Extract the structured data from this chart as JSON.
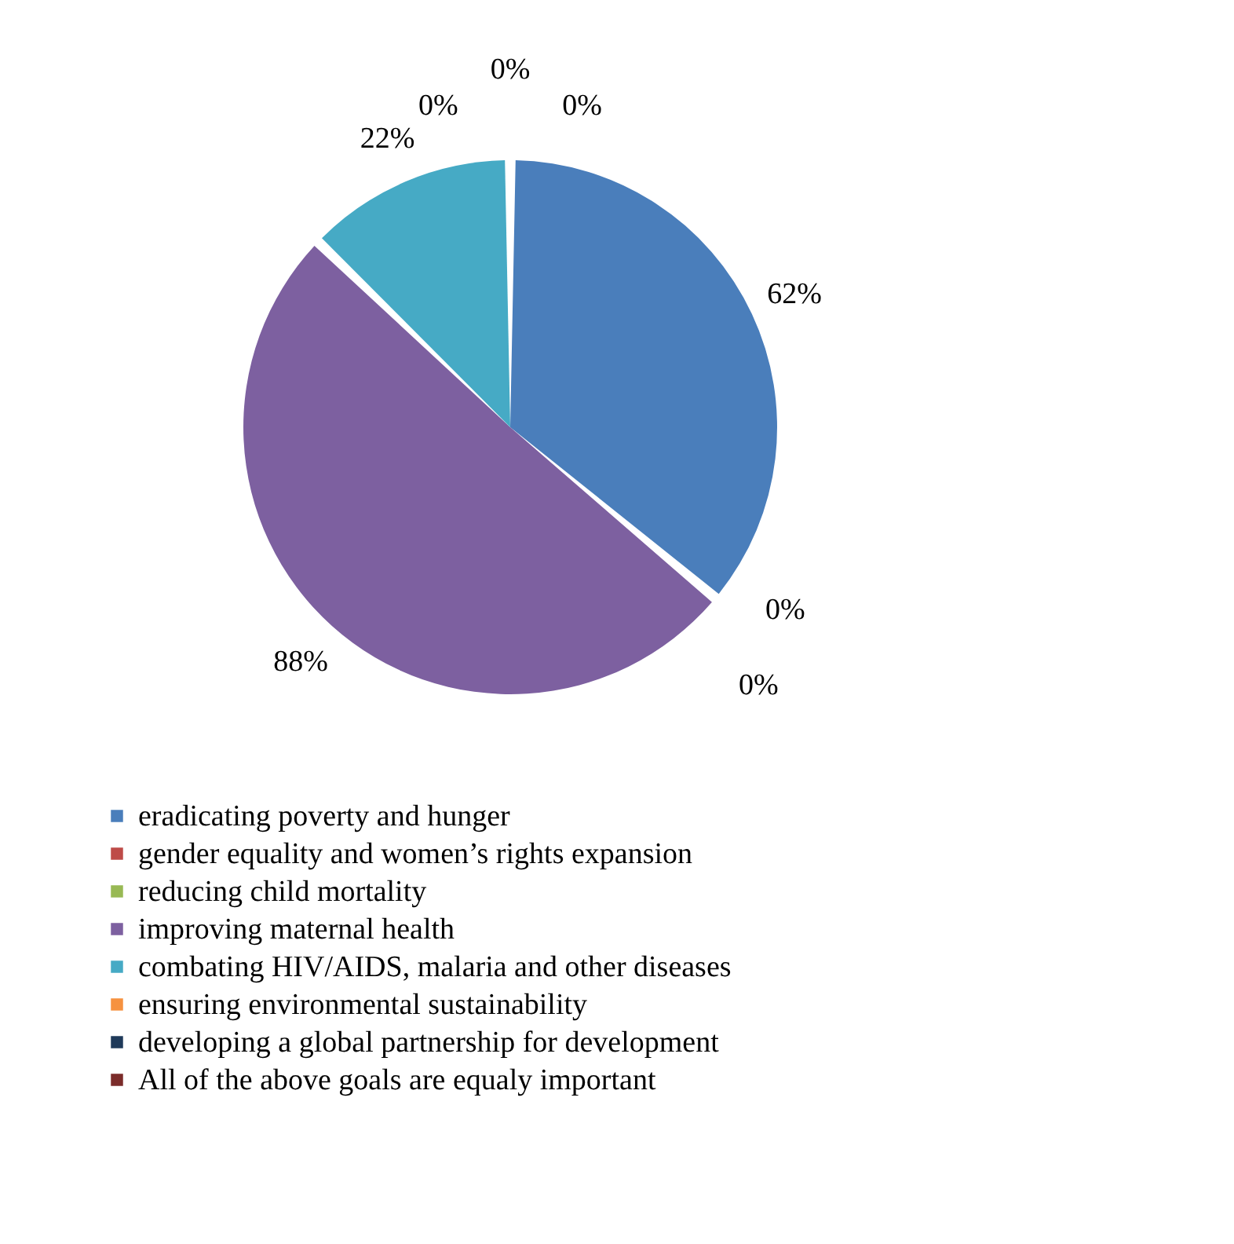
{
  "chart_data": {
    "type": "pie",
    "categories": [
      "eradicating poverty and hunger",
      "gender equality and women’s rights expansion",
      "reducing child mortality",
      "improving maternal health",
      "combating HIV/AIDS, malaria and other diseases",
      "ensuring environmental sustainability",
      "developing a global partnership for development",
      "All of the above goals are equaly important"
    ],
    "values": [
      62,
      0,
      0,
      88,
      22,
      0,
      0,
      0
    ],
    "value_labels": [
      "62%",
      "0%",
      "0%",
      "88%",
      "22%",
      "0%",
      "0%",
      "0%"
    ],
    "colors": [
      "#4a7ebb",
      "#be4b48",
      "#98b954",
      "#7d60a0",
      "#46aac5",
      "#f69240",
      "#1f3a5a",
      "#7b2c2a"
    ],
    "legend": "bottom"
  }
}
